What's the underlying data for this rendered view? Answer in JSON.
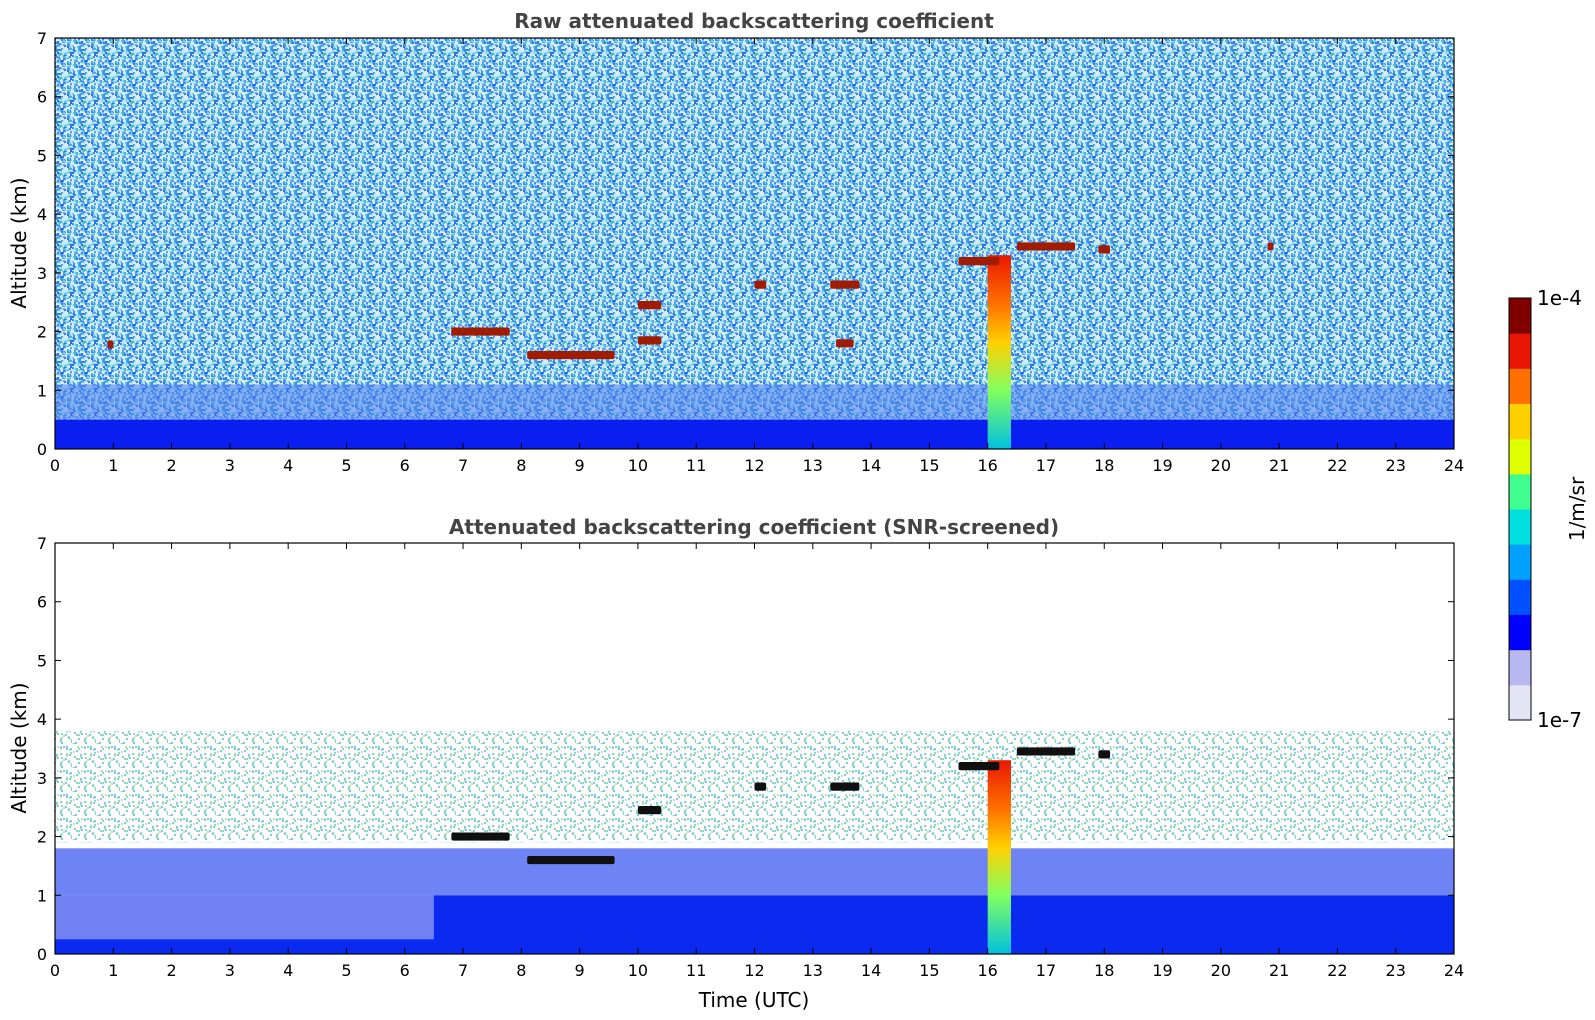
{
  "chart_data": [
    {
      "type": "heatmap",
      "title": "Raw attenuated backscattering coefficient",
      "xlabel": "",
      "ylabel": "Altitude (km)",
      "xlim": [
        0,
        24
      ],
      "ylim": [
        0,
        7
      ],
      "x_ticks": [
        "0",
        "1",
        "2",
        "3",
        "4",
        "5",
        "6",
        "7",
        "8",
        "9",
        "10",
        "11",
        "12",
        "13",
        "14",
        "15",
        "16",
        "17",
        "18",
        "19",
        "20",
        "21",
        "22",
        "23",
        "24"
      ],
      "y_ticks": [
        "0",
        "1",
        "2",
        "3",
        "4",
        "5",
        "6",
        "7"
      ],
      "features": {
        "surface_layer_top_km": 0.5,
        "strong_column": {
          "x": [
            16.0,
            16.4
          ],
          "y": [
            0,
            3.3
          ]
        },
        "hot_cloud_layers": [
          {
            "x": [
              0.9,
              1.0
            ],
            "y": 1.78
          },
          {
            "x": [
              6.8,
              7.8
            ],
            "y": 2.0
          },
          {
            "x": [
              8.1,
              9.6
            ],
            "y": 1.6
          },
          {
            "x": [
              10.0,
              10.4
            ],
            "y": 2.45
          },
          {
            "x": [
              10.0,
              10.4
            ],
            "y": 1.85
          },
          {
            "x": [
              12.0,
              12.2
            ],
            "y": 2.8
          },
          {
            "x": [
              13.3,
              13.8
            ],
            "y": 2.8
          },
          {
            "x": [
              13.4,
              13.7
            ],
            "y": 1.8
          },
          {
            "x": [
              15.5,
              16.2
            ],
            "y": 3.2
          },
          {
            "x": [
              16.5,
              17.5
            ],
            "y": 3.45
          },
          {
            "x": [
              17.9,
              18.1
            ],
            "y": 3.4
          },
          {
            "x": [
              20.8,
              20.9
            ],
            "y": 3.45
          }
        ]
      }
    },
    {
      "type": "heatmap",
      "title": "Attenuated backscattering coefficient (SNR-screened)",
      "xlabel": "Time (UTC)",
      "ylabel": "Altitude (km)",
      "xlim": [
        0,
        24
      ],
      "ylim": [
        0,
        7
      ],
      "x_ticks": [
        "0",
        "1",
        "2",
        "3",
        "4",
        "5",
        "6",
        "7",
        "8",
        "9",
        "10",
        "11",
        "12",
        "13",
        "14",
        "15",
        "16",
        "17",
        "18",
        "19",
        "20",
        "21",
        "22",
        "23",
        "24"
      ],
      "y_ticks": [
        "0",
        "1",
        "2",
        "3",
        "4",
        "5",
        "6",
        "7"
      ],
      "features": {
        "blue_layer_top_km": 1.8,
        "strong_column": {
          "x": [
            16.0,
            16.4
          ],
          "y": [
            0,
            3.3
          ]
        },
        "black_cloud_layers": [
          {
            "x": [
              6.8,
              7.8
            ],
            "y": 2.0
          },
          {
            "x": [
              8.1,
              9.6
            ],
            "y": 1.6
          },
          {
            "x": [
              10.0,
              10.4
            ],
            "y": 2.45
          },
          {
            "x": [
              12.0,
              12.2
            ],
            "y": 2.85
          },
          {
            "x": [
              13.3,
              13.8
            ],
            "y": 2.85
          },
          {
            "x": [
              15.5,
              16.2
            ],
            "y": 3.2
          },
          {
            "x": [
              16.5,
              17.5
            ],
            "y": 3.45
          },
          {
            "x": [
              17.9,
              18.1
            ],
            "y": 3.4
          }
        ]
      }
    }
  ],
  "colorbar": {
    "label": "1/m/sr",
    "max_label": "1e-4",
    "min_label": "1e-7",
    "scale": "log",
    "colors": [
      "#e4e4f5",
      "#b8b8f0",
      "#0000ff",
      "#0050ff",
      "#00a0ff",
      "#00e0e0",
      "#40ff90",
      "#e0ff00",
      "#ffd000",
      "#ff7000",
      "#e81800",
      "#800000"
    ]
  }
}
